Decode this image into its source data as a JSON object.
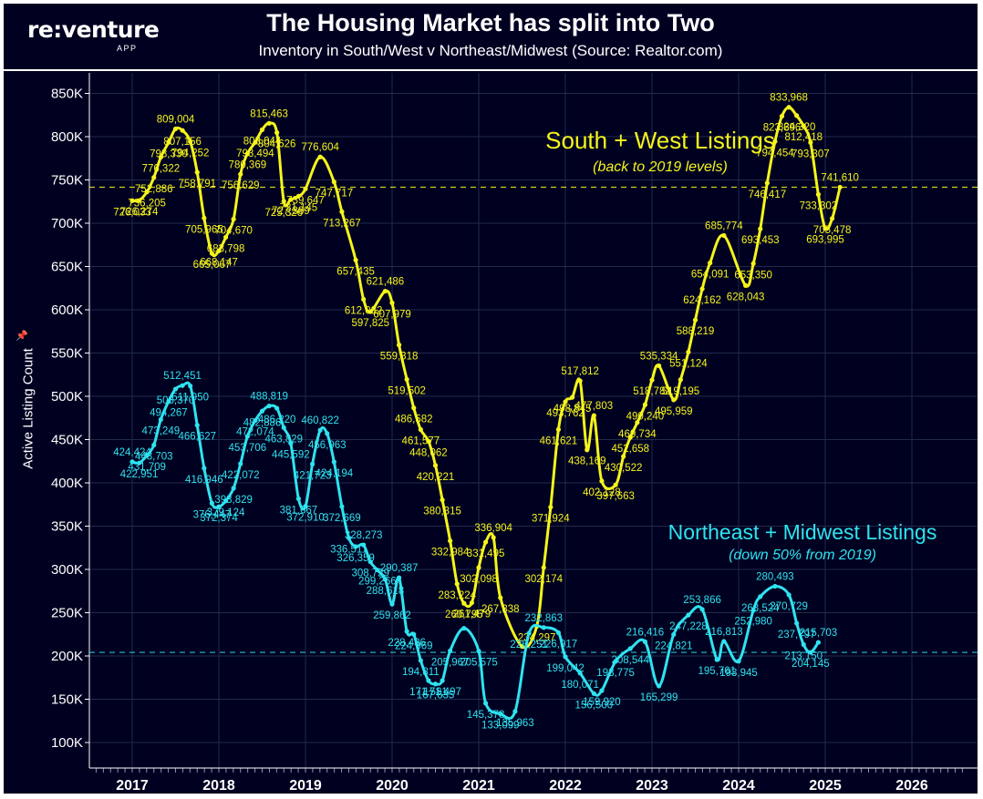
{
  "header": {
    "logo_text": "re:venture",
    "logo_sub": "APP",
    "title": "The Housing Market has split into Two",
    "subtitle": "Inventory in South/West v Northeast/Midwest (Source: Realtor.com)"
  },
  "colors": {
    "background": "#000021",
    "south_west": "#f5f51c",
    "northeast_midwest": "#2fe3f0",
    "grid": "#222a4a",
    "text": "#ffffff"
  },
  "annotations": {
    "sw_title": "South + West Listings",
    "sw_note": "(back to 2019 levels)",
    "ne_title": "Northeast + Midwest Listings",
    "ne_note": "(down 50% from 2019)"
  },
  "chart_data": {
    "type": "line",
    "title": "The Housing Market has split into Two",
    "subtitle": "Inventory in South/West v Northeast/Midwest (Source: Realtor.com)",
    "xlabel": "",
    "ylabel": "Active Listing Count",
    "ylim": [
      60000,
      870000
    ],
    "xlim": [
      2016.5,
      2026.6
    ],
    "x_ticks": [
      "2017",
      "2018",
      "2019",
      "2020",
      "2021",
      "2022",
      "2023",
      "2024",
      "2025",
      "2026"
    ],
    "y_ticks": [
      {
        "value": 100000,
        "label": "100K"
      },
      {
        "value": 150000,
        "label": "150K"
      },
      {
        "value": 200000,
        "label": "200K"
      },
      {
        "value": 250000,
        "label": "250K"
      },
      {
        "value": 300000,
        "label": "300K"
      },
      {
        "value": 350000,
        "label": "350K"
      },
      {
        "value": 400000,
        "label": "400K"
      },
      {
        "value": 450000,
        "label": "450K"
      },
      {
        "value": 500000,
        "label": "500K"
      },
      {
        "value": 550000,
        "label": "550K"
      },
      {
        "value": 600000,
        "label": "600K"
      },
      {
        "value": 650000,
        "label": "650K"
      },
      {
        "value": 700000,
        "label": "700K"
      },
      {
        "value": 750000,
        "label": "750K"
      },
      {
        "value": 800000,
        "label": "800K"
      },
      {
        "value": 850000,
        "label": "850K"
      }
    ],
    "grid": true,
    "reference_lines": [
      {
        "series": "south_west",
        "value": 741610,
        "style": "dashed"
      },
      {
        "series": "northeast_midwest",
        "value": 204145,
        "style": "dashed"
      }
    ],
    "series": [
      {
        "key": "south_west",
        "name": "South + West Listings",
        "points": [
          {
            "x": 2017.0,
            "y": 726033,
            "label": "726,033"
          },
          {
            "x": 2017.08,
            "y": 726274,
            "label": "726,274"
          },
          {
            "x": 2017.17,
            "y": 736205,
            "label": "736,205"
          },
          {
            "x": 2017.25,
            "y": 752886,
            "label": "752,886"
          },
          {
            "x": 2017.33,
            "y": 776322,
            "label": "776,322"
          },
          {
            "x": 2017.42,
            "y": 793330,
            "label": "793,330"
          },
          {
            "x": 2017.5,
            "y": 809004,
            "label": "809,004"
          },
          {
            "x": 2017.58,
            "y": 807156,
            "label": "807,156"
          },
          {
            "x": 2017.67,
            "y": 794252,
            "label": "794,252"
          },
          {
            "x": 2017.75,
            "y": 758791,
            "label": "758,791"
          },
          {
            "x": 2017.83,
            "y": 705965,
            "label": "705,965"
          },
          {
            "x": 2017.92,
            "y": 665067,
            "label": "665,067"
          },
          {
            "x": 2018.0,
            "y": 668147,
            "label": "668,147"
          },
          {
            "x": 2018.08,
            "y": 683798,
            "label": "683,798"
          },
          {
            "x": 2018.17,
            "y": 704670,
            "label": "704,670"
          },
          {
            "x": 2018.25,
            "y": 756629,
            "label": "756,629"
          },
          {
            "x": 2018.33,
            "y": 780369,
            "label": "780,369"
          },
          {
            "x": 2018.42,
            "y": 793494,
            "label": "793,494"
          },
          {
            "x": 2018.5,
            "y": 808044,
            "label": "808,044"
          },
          {
            "x": 2018.58,
            "y": 815463,
            "label": "815,463"
          },
          {
            "x": 2018.67,
            "y": 804626,
            "label": "804,626"
          },
          {
            "x": 2018.75,
            "y": 725326,
            "label": "725,326"
          },
          {
            "x": 2018.83,
            "y": 727389,
            "label": "727,389"
          },
          {
            "x": 2018.92,
            "y": 731145,
            "label": "731,145"
          },
          {
            "x": 2019.0,
            "y": 739647,
            "label": "739,647"
          },
          {
            "x": 2019.17,
            "y": 776604,
            "label": "776,604"
          },
          {
            "x": 2019.33,
            "y": 747717,
            "label": "747,717"
          },
          {
            "x": 2019.42,
            "y": 713267,
            "label": "713,267"
          },
          {
            "x": 2019.58,
            "y": 657435,
            "label": "657,435"
          },
          {
            "x": 2019.67,
            "y": 612082,
            "label": "612,082"
          },
          {
            "x": 2019.75,
            "y": 597825,
            "label": "597,825"
          },
          {
            "x": 2019.92,
            "y": 621486,
            "label": "621,486"
          },
          {
            "x": 2020.0,
            "y": 607979,
            "label": "607,979"
          },
          {
            "x": 2020.08,
            "y": 559318,
            "label": "559,318"
          },
          {
            "x": 2020.17,
            "y": 519502,
            "label": "519,502"
          },
          {
            "x": 2020.25,
            "y": 486582,
            "label": "486,582"
          },
          {
            "x": 2020.33,
            "y": 461577,
            "label": "461,577"
          },
          {
            "x": 2020.42,
            "y": 448062,
            "label": "448,062"
          },
          {
            "x": 2020.5,
            "y": 420221,
            "label": "420,221"
          },
          {
            "x": 2020.58,
            "y": 380315,
            "label": "380,315"
          },
          {
            "x": 2020.67,
            "y": 332984,
            "label": "332,984"
          },
          {
            "x": 2020.75,
            "y": 283224,
            "label": "283,224"
          },
          {
            "x": 2020.83,
            "y": 260795,
            "label": "260,795"
          },
          {
            "x": 2020.92,
            "y": 261479,
            "label": "261,479"
          },
          {
            "x": 2021.0,
            "y": 302098,
            "label": "302,098"
          },
          {
            "x": 2021.08,
            "y": 331495,
            "label": "331,495"
          },
          {
            "x": 2021.17,
            "y": 336904,
            "label": "336,904"
          },
          {
            "x": 2021.25,
            "y": 267338,
            "label": "267,338"
          },
          {
            "x": 2021.5,
            "y": 211000,
            "label": ""
          },
          {
            "x": 2021.67,
            "y": 234297,
            "label": "234,297"
          },
          {
            "x": 2021.75,
            "y": 302174,
            "label": "302,174"
          },
          {
            "x": 2021.83,
            "y": 371924,
            "label": "371,924"
          },
          {
            "x": 2021.92,
            "y": 461621,
            "label": "461,621"
          },
          {
            "x": 2022.0,
            "y": 493762,
            "label": "493,762"
          },
          {
            "x": 2022.08,
            "y": 498845,
            "label": "498,845"
          },
          {
            "x": 2022.17,
            "y": 517812,
            "label": "517,812"
          },
          {
            "x": 2022.25,
            "y": 438169,
            "label": "438,169"
          },
          {
            "x": 2022.33,
            "y": 477803,
            "label": "477,803"
          },
          {
            "x": 2022.42,
            "y": 402128,
            "label": "402,128"
          },
          {
            "x": 2022.58,
            "y": 397663,
            "label": "397,663"
          },
          {
            "x": 2022.67,
            "y": 430522,
            "label": "430,522"
          },
          {
            "x": 2022.75,
            "y": 452658,
            "label": "452,658"
          },
          {
            "x": 2022.83,
            "y": 469734,
            "label": "469,734"
          },
          {
            "x": 2022.92,
            "y": 490240,
            "label": "490,240"
          },
          {
            "x": 2023.0,
            "y": 518782,
            "label": "518,782"
          },
          {
            "x": 2023.08,
            "y": 535334,
            "label": "535,334"
          },
          {
            "x": 2023.25,
            "y": 495959,
            "label": "495,959"
          },
          {
            "x": 2023.33,
            "y": 519195,
            "label": "519,195"
          },
          {
            "x": 2023.42,
            "y": 551124,
            "label": "551,124"
          },
          {
            "x": 2023.5,
            "y": 588219,
            "label": "588,219"
          },
          {
            "x": 2023.58,
            "y": 624162,
            "label": "624,162"
          },
          {
            "x": 2023.67,
            "y": 654091,
            "label": "654,091"
          },
          {
            "x": 2023.83,
            "y": 685774,
            "label": "685,774"
          },
          {
            "x": 2024.08,
            "y": 628043,
            "label": "628,043"
          },
          {
            "x": 2024.17,
            "y": 653350,
            "label": "653,350"
          },
          {
            "x": 2024.25,
            "y": 693453,
            "label": "693,453"
          },
          {
            "x": 2024.33,
            "y": 746417,
            "label": "746,417"
          },
          {
            "x": 2024.42,
            "y": 794454,
            "label": "794,454"
          },
          {
            "x": 2024.5,
            "y": 823696,
            "label": "823,696"
          },
          {
            "x": 2024.58,
            "y": 833968,
            "label": "833,968"
          },
          {
            "x": 2024.67,
            "y": 824320,
            "label": "824,320"
          },
          {
            "x": 2024.75,
            "y": 812418,
            "label": "812,418"
          },
          {
            "x": 2024.83,
            "y": 793307,
            "label": "793,307"
          },
          {
            "x": 2024.92,
            "y": 733302,
            "label": "733,302"
          },
          {
            "x": 2025.0,
            "y": 693995,
            "label": "693,995"
          },
          {
            "x": 2025.08,
            "y": 705478,
            "label": "705,478"
          },
          {
            "x": 2025.17,
            "y": 741610,
            "label": "741,610"
          }
        ]
      },
      {
        "key": "northeast_midwest",
        "name": "Northeast + Midwest Listings",
        "points": [
          {
            "x": 2017.0,
            "y": 424424,
            "label": "424,424"
          },
          {
            "x": 2017.08,
            "y": 422951,
            "label": "422,951"
          },
          {
            "x": 2017.17,
            "y": 431709,
            "label": "431,709"
          },
          {
            "x": 2017.25,
            "y": 443703,
            "label": "443,703"
          },
          {
            "x": 2017.33,
            "y": 473249,
            "label": "473,249"
          },
          {
            "x": 2017.42,
            "y": 494267,
            "label": "494,267"
          },
          {
            "x": 2017.5,
            "y": 508370,
            "label": "508,370"
          },
          {
            "x": 2017.58,
            "y": 512451,
            "label": "512,451"
          },
          {
            "x": 2017.67,
            "y": 511950,
            "label": "511,950"
          },
          {
            "x": 2017.75,
            "y": 466627,
            "label": "466,627"
          },
          {
            "x": 2017.83,
            "y": 416946,
            "label": "416,946"
          },
          {
            "x": 2017.92,
            "y": 376447,
            "label": "376,447"
          },
          {
            "x": 2018.0,
            "y": 372374,
            "label": "372,374"
          },
          {
            "x": 2018.08,
            "y": 379124,
            "label": "379,124"
          },
          {
            "x": 2018.17,
            "y": 393829,
            "label": "393,829"
          },
          {
            "x": 2018.25,
            "y": 422072,
            "label": "422,072"
          },
          {
            "x": 2018.33,
            "y": 453706,
            "label": "453,706"
          },
          {
            "x": 2018.42,
            "y": 472074,
            "label": "472,074"
          },
          {
            "x": 2018.5,
            "y": 482886,
            "label": "482,886"
          },
          {
            "x": 2018.58,
            "y": 488819,
            "label": "488,819"
          },
          {
            "x": 2018.67,
            "y": 486220,
            "label": "486,220"
          },
          {
            "x": 2018.75,
            "y": 463829,
            "label": "463,829"
          },
          {
            "x": 2018.83,
            "y": 445592,
            "label": "445,592"
          },
          {
            "x": 2018.92,
            "y": 381667,
            "label": "381,667"
          },
          {
            "x": 2019.0,
            "y": 372910,
            "label": "372,910"
          },
          {
            "x": 2019.08,
            "y": 421723,
            "label": "421,723"
          },
          {
            "x": 2019.17,
            "y": 460822,
            "label": "460,822"
          },
          {
            "x": 2019.25,
            "y": 456963,
            "label": "456,963"
          },
          {
            "x": 2019.33,
            "y": 424194,
            "label": "424,194"
          },
          {
            "x": 2019.42,
            "y": 372669,
            "label": "372,669"
          },
          {
            "x": 2019.5,
            "y": 336511,
            "label": "336,511"
          },
          {
            "x": 2019.58,
            "y": 326359,
            "label": "326,359"
          },
          {
            "x": 2019.67,
            "y": 328273,
            "label": "328,273"
          },
          {
            "x": 2019.75,
            "y": 308729,
            "label": "308,729"
          },
          {
            "x": 2019.83,
            "y": 299266,
            "label": "299,266"
          },
          {
            "x": 2019.92,
            "y": 288618,
            "label": "288,618"
          },
          {
            "x": 2020.0,
            "y": 259862,
            "label": "259,862"
          },
          {
            "x": 2020.08,
            "y": 290387,
            "label": "290,387"
          },
          {
            "x": 2020.17,
            "y": 228436,
            "label": "228,436"
          },
          {
            "x": 2020.25,
            "y": 224969,
            "label": "224,969"
          },
          {
            "x": 2020.33,
            "y": 194811,
            "label": "194,811"
          },
          {
            "x": 2020.42,
            "y": 171581,
            "label": "171,581"
          },
          {
            "x": 2020.5,
            "y": 167635,
            "label": "167,635"
          },
          {
            "x": 2020.58,
            "y": 171497,
            "label": "171,497"
          },
          {
            "x": 2020.67,
            "y": 205967,
            "label": "205,967"
          },
          {
            "x": 2020.83,
            "y": 232000,
            "label": ""
          },
          {
            "x": 2021.0,
            "y": 205575,
            "label": "205,575"
          },
          {
            "x": 2021.08,
            "y": 145378,
            "label": "145,378"
          },
          {
            "x": 2021.25,
            "y": 133099,
            "label": "133,099"
          },
          {
            "x": 2021.42,
            "y": 135963,
            "label": "135,963"
          },
          {
            "x": 2021.58,
            "y": 226251,
            "label": "226,251"
          },
          {
            "x": 2021.75,
            "y": 232863,
            "label": "232,863"
          },
          {
            "x": 2021.92,
            "y": 226917,
            "label": "226,917"
          },
          {
            "x": 2022.0,
            "y": 199042,
            "label": "199,042"
          },
          {
            "x": 2022.17,
            "y": 180071,
            "label": "180,071"
          },
          {
            "x": 2022.33,
            "y": 156500,
            "label": "156,500"
          },
          {
            "x": 2022.42,
            "y": 159920,
            "label": "159,920"
          },
          {
            "x": 2022.58,
            "y": 193775,
            "label": "193,775"
          },
          {
            "x": 2022.75,
            "y": 208544,
            "label": "208,544"
          },
          {
            "x": 2022.92,
            "y": 216416,
            "label": "216,416"
          },
          {
            "x": 2023.08,
            "y": 165299,
            "label": "165,299"
          },
          {
            "x": 2023.25,
            "y": 224821,
            "label": "224,821"
          },
          {
            "x": 2023.42,
            "y": 247228,
            "label": "247,228"
          },
          {
            "x": 2023.58,
            "y": 253866,
            "label": "253,866"
          },
          {
            "x": 2023.75,
            "y": 195761,
            "label": "195,761"
          },
          {
            "x": 2023.83,
            "y": 216813,
            "label": "216,813"
          },
          {
            "x": 2024.0,
            "y": 193945,
            "label": "193,945"
          },
          {
            "x": 2024.17,
            "y": 252980,
            "label": "252,980"
          },
          {
            "x": 2024.25,
            "y": 268524,
            "label": "268,524"
          },
          {
            "x": 2024.42,
            "y": 280493,
            "label": "280,493"
          },
          {
            "x": 2024.58,
            "y": 270729,
            "label": "270,729"
          },
          {
            "x": 2024.67,
            "y": 237797,
            "label": "237,797"
          },
          {
            "x": 2024.75,
            "y": 213150,
            "label": "213,150"
          },
          {
            "x": 2024.83,
            "y": 204145,
            "label": "204,145"
          },
          {
            "x": 2024.92,
            "y": 215703,
            "label": "215,703"
          }
        ]
      }
    ]
  }
}
